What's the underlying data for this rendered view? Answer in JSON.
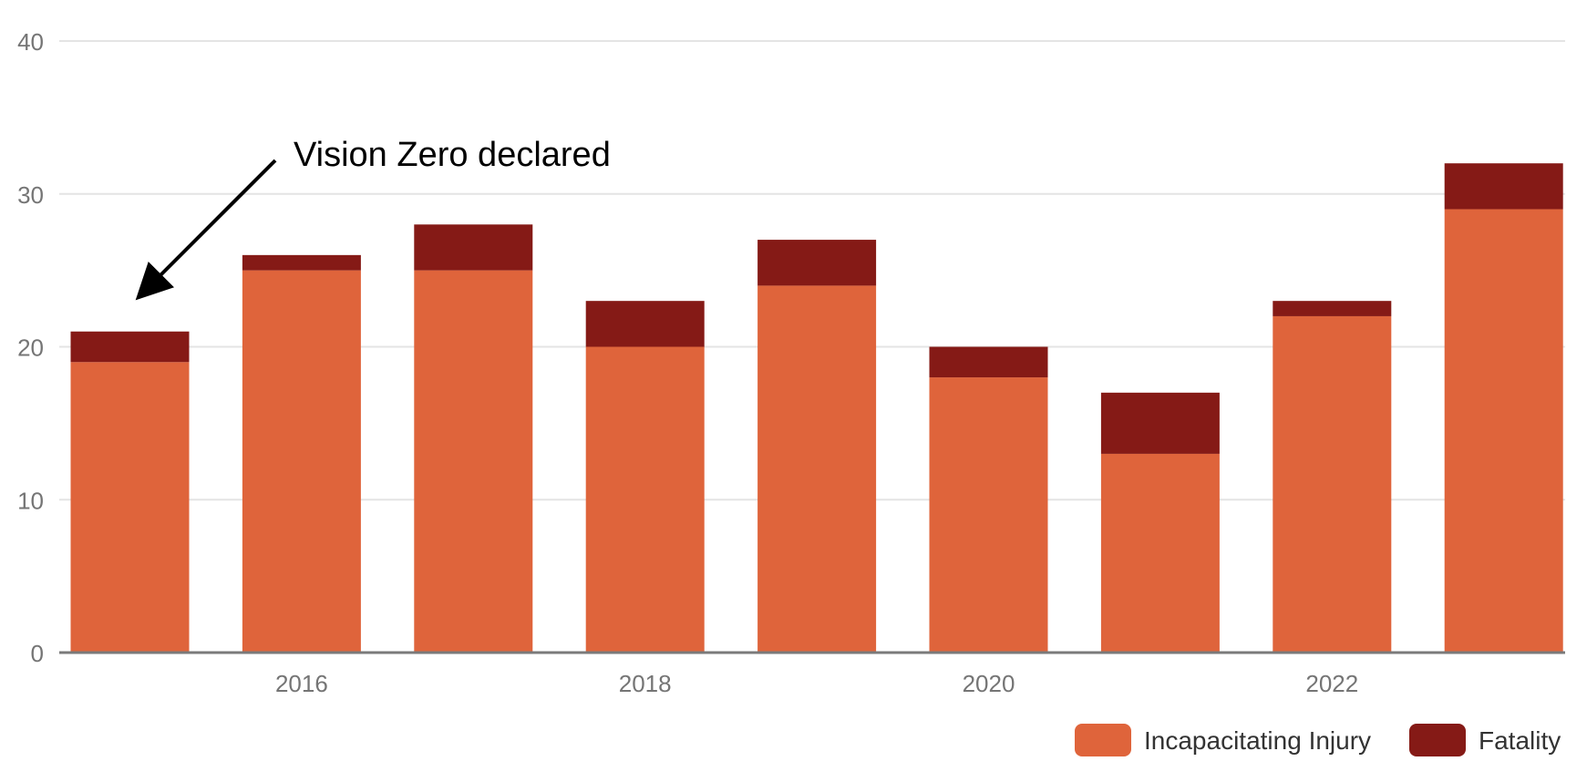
{
  "chart_data": {
    "type": "bar",
    "stacked": true,
    "x": [
      2015,
      2016,
      2017,
      2018,
      2019,
      2020,
      2021,
      2022,
      2023
    ],
    "x_tick_labels": [
      "2016",
      "2018",
      "2020",
      "2022"
    ],
    "x_tick_values": [
      2016,
      2018,
      2020,
      2022
    ],
    "y_tick_labels": [
      "0",
      "10",
      "20",
      "30",
      "40"
    ],
    "y_tick_values": [
      0,
      10,
      20,
      30,
      40
    ],
    "ylim": [
      0,
      40
    ],
    "grid": true,
    "legend_position": "bottom-right",
    "series": [
      {
        "name": "Incapacitating Injury",
        "color": "#df643b",
        "values": [
          19,
          25,
          25,
          20,
          24,
          18,
          13,
          22,
          29
        ]
      },
      {
        "name": "Fatality",
        "color": "#851a16",
        "values": [
          2,
          1,
          3,
          3,
          3,
          2,
          4,
          1,
          3
        ]
      }
    ],
    "annotations": [
      {
        "text": "Vision Zero declared",
        "target_x": 2015,
        "style": "arrow"
      }
    ],
    "colors": {
      "grid": "#e4e4e4",
      "axis": "#7a7a7a",
      "tick_text": "#757575",
      "annotation": "#000000"
    }
  }
}
